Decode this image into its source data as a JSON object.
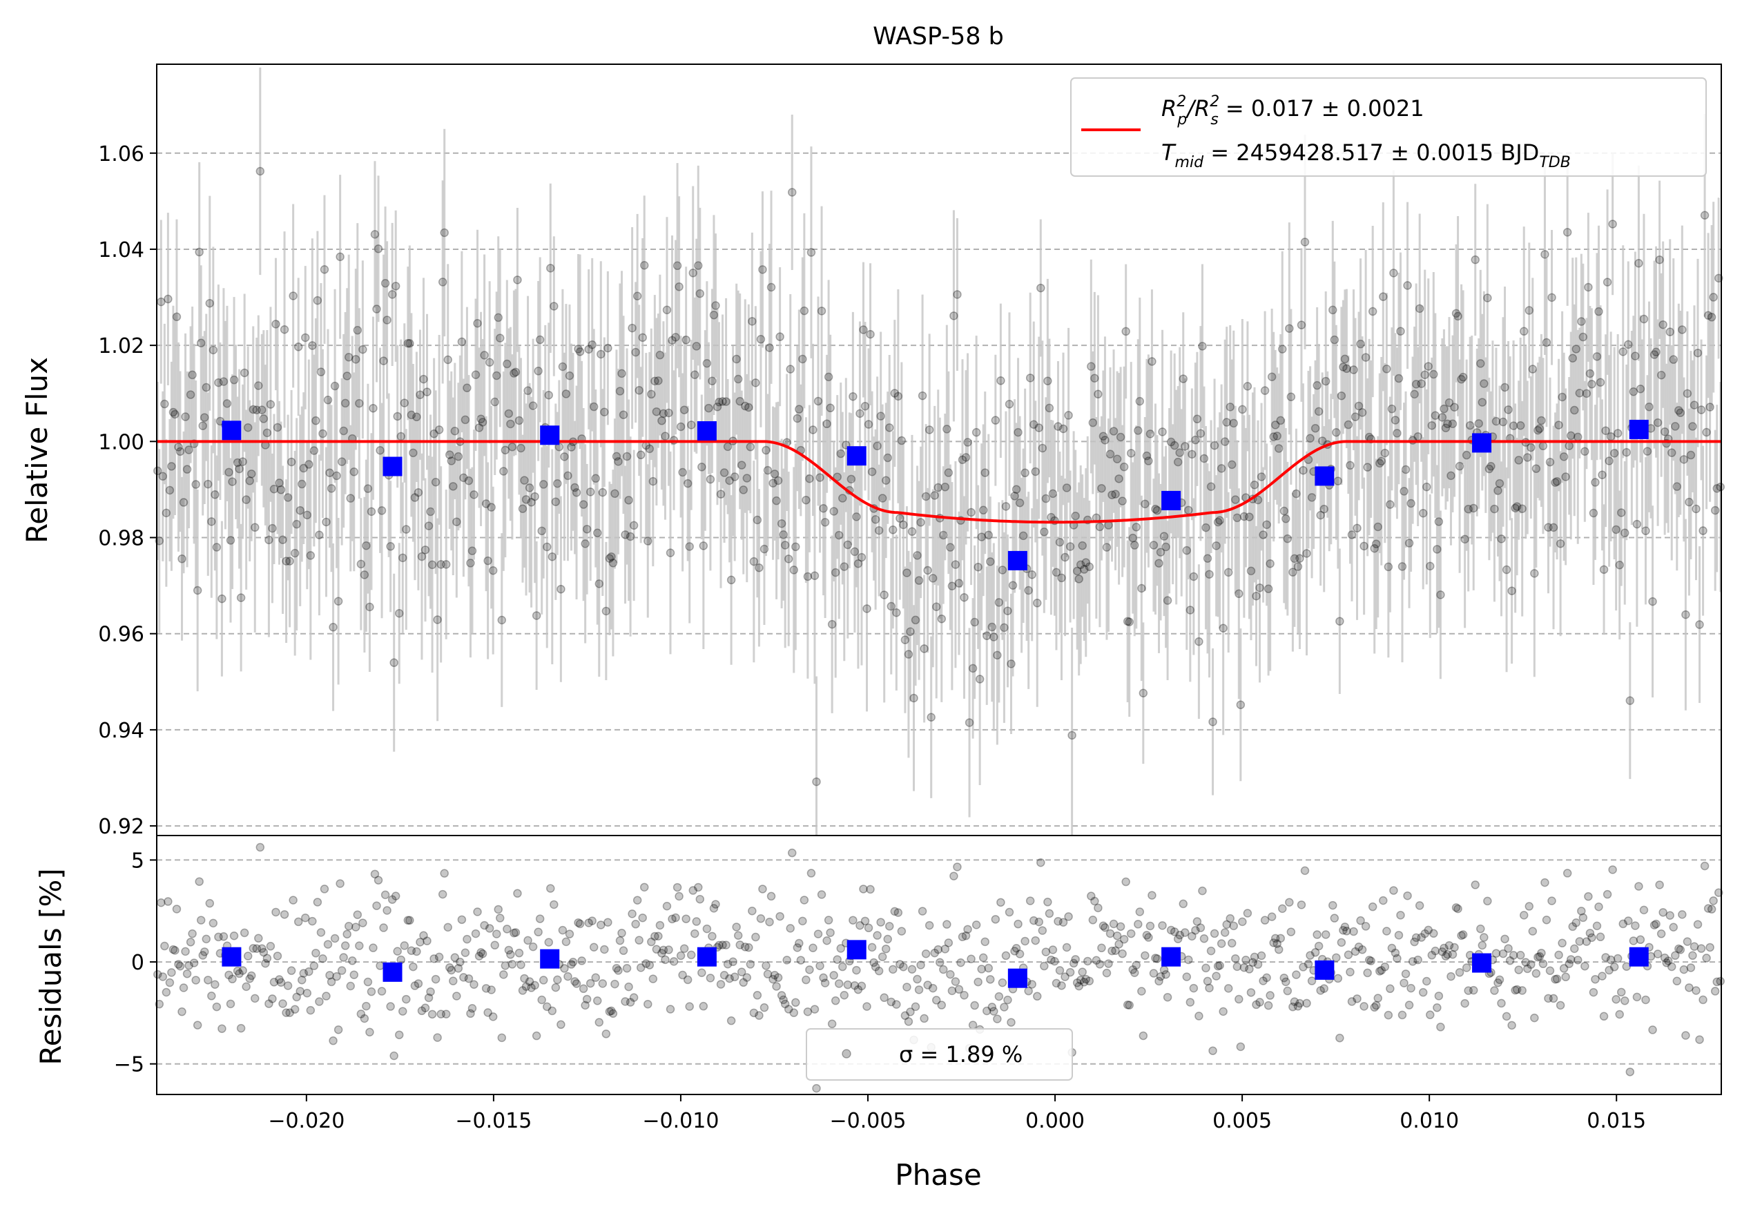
{
  "chart_data": [
    {
      "type": "scatter",
      "title": "WASP-58 b",
      "xlabel": "",
      "ylabel": "Relative Flux",
      "xlim": [
        -0.024,
        0.0178
      ],
      "ylim": [
        0.918,
        1.0785
      ],
      "grid": "horizontal dashed",
      "yticks": [
        "0.92",
        "0.94",
        "0.96",
        "0.98",
        "1.00",
        "1.02",
        "1.04",
        "1.06"
      ],
      "yticks_values": [
        0.92,
        0.94,
        0.96,
        0.98,
        1.0,
        1.02,
        1.04,
        1.06
      ],
      "legend": {
        "placement": "upper-right",
        "line1_pre": "R",
        "line1_sub1": "p",
        "line1_sup1": "2",
        "line1_mid": "/R",
        "line1_sub2": "s",
        "line1_sup2": "2",
        "line1_post": " = 0.017 ± 0.0021",
        "line2_pre": "T",
        "line2_sub1": "mid",
        "line2_post": " = 2459428.517 ± 0.0015 BJD",
        "line2_sub2": "TDB"
      },
      "model": {
        "depth": 0.0168,
        "t1": -0.0078,
        "t2": -0.0042,
        "t3": 0.0042,
        "t4": 0.0078,
        "color": "#ff0000"
      },
      "binned": {
        "color": "#0000ff",
        "x": [
          -0.022,
          -0.0177,
          -0.0135,
          -0.0093,
          -0.0053,
          -0.001,
          0.0031,
          0.0072,
          0.0114,
          0.0156
        ],
        "y": [
          1.0023,
          0.9948,
          1.0013,
          1.0022,
          0.997,
          0.9752,
          0.9877,
          0.9928,
          0.9997,
          1.0025
        ]
      },
      "raw": {
        "color": "#000000",
        "errorbar_color": "#c4c4c4",
        "count": 900,
        "scatter_sigma": 0.0189,
        "typical_error": 0.018
      }
    },
    {
      "type": "scatter",
      "xlabel": "Phase",
      "ylabel": "Residuals [%]",
      "xlim": [
        -0.024,
        0.0178
      ],
      "ylim": [
        -6.5,
        6.2
      ],
      "grid": "horizontal dashed",
      "xticks": [
        "−0.020",
        "−0.015",
        "−0.010",
        "−0.005",
        "0.000",
        "0.005",
        "0.010",
        "0.015"
      ],
      "xticks_values": [
        -0.02,
        -0.015,
        -0.01,
        -0.005,
        0.0,
        0.005,
        0.01,
        0.015
      ],
      "yticks": [
        "−5",
        "0",
        "5"
      ],
      "yticks_values": [
        -5,
        0,
        5
      ],
      "legend": {
        "placement": "lower-center",
        "label": "σ = 1.89 %"
      },
      "binned": {
        "color": "#0000ff",
        "x": [
          -0.022,
          -0.0177,
          -0.0135,
          -0.0093,
          -0.0053,
          -0.001,
          0.0031,
          0.0072,
          0.0114,
          0.0156
        ],
        "y": [
          0.25,
          -0.5,
          0.15,
          0.25,
          0.6,
          -0.8,
          0.25,
          -0.4,
          -0.05,
          0.25
        ]
      }
    }
  ]
}
